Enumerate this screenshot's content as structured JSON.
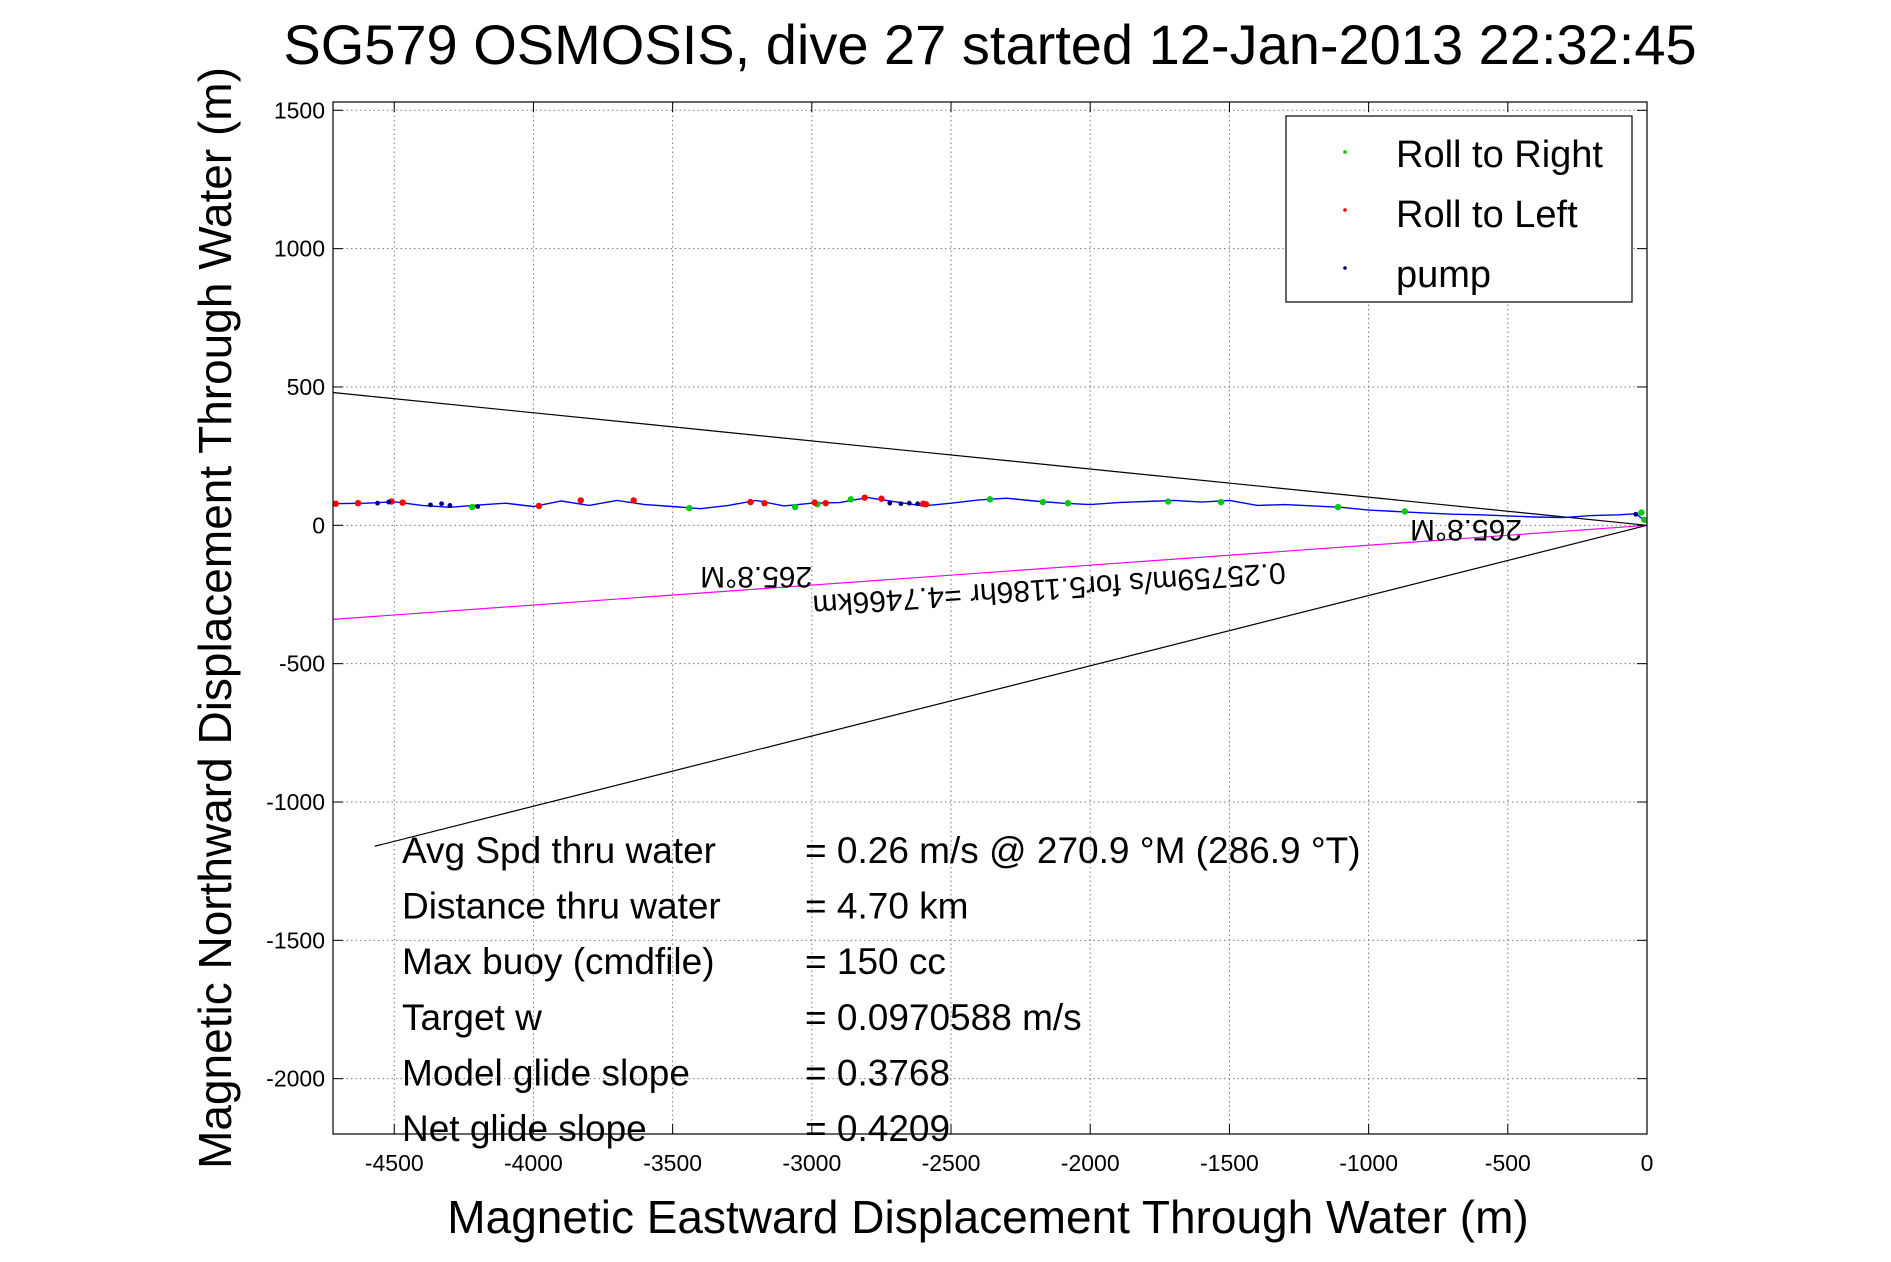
{
  "chart_data": {
    "type": "scatter",
    "title": "SG579 OSMOSIS, dive 27 started 12-Jan-2013 22:32:45",
    "xlabel": "Magnetic Eastward Displacement Through Water (m)",
    "ylabel": "Magnetic Northward Displacement Through Water (m)",
    "xlim": [
      -4720,
      0
    ],
    "ylim": [
      -2200,
      1530
    ],
    "xticks": [
      -4500,
      -4000,
      -3500,
      -3000,
      -2500,
      -2000,
      -1500,
      -1000,
      -500,
      0
    ],
    "yticks": [
      -2000,
      -1500,
      -1000,
      -500,
      0,
      500,
      1000,
      1500
    ],
    "grid": true,
    "legend_position": "top-right",
    "legend": [
      {
        "label": "Roll to Right",
        "color": "#00cc00"
      },
      {
        "label": "Roll to Left",
        "color": "#ff0000"
      },
      {
        "label": "pump",
        "color": "#000080"
      }
    ],
    "track": {
      "color": "#0000ff",
      "x": [
        -4720,
        -4600,
        -4500,
        -4400,
        -4300,
        -4200,
        -4100,
        -4000,
        -3900,
        -3800,
        -3700,
        -3600,
        -3500,
        -3400,
        -3300,
        -3200,
        -3100,
        -3000,
        -2900,
        -2800,
        -2700,
        -2600,
        -2500,
        -2400,
        -2300,
        -2200,
        -2100,
        -2000,
        -1900,
        -1800,
        -1700,
        -1600,
        -1500,
        -1400,
        -1300,
        -1200,
        -1100,
        -1000,
        -900,
        -800,
        -700,
        -600,
        -500,
        -400,
        -300,
        -200,
        -100,
        -40,
        0
      ],
      "y": [
        78,
        80,
        85,
        72,
        65,
        73,
        80,
        68,
        88,
        72,
        90,
        75,
        68,
        60,
        72,
        90,
        70,
        80,
        82,
        100,
        85,
        70,
        80,
        92,
        98,
        88,
        80,
        75,
        82,
        86,
        90,
        84,
        90,
        72,
        75,
        70,
        65,
        55,
        50,
        45,
        40,
        38,
        34,
        30,
        28,
        35,
        38,
        42,
        10
      ]
    },
    "roll_right": {
      "x": [
        -4220,
        -3440,
        -3060,
        -2980,
        -2860,
        -2360,
        -2170,
        -2080,
        -1720,
        -1530,
        -1110,
        -870,
        -20,
        -10
      ],
      "y": [
        66,
        62,
        66,
        76,
        94,
        94,
        84,
        80,
        86,
        84,
        66,
        50,
        46,
        20
      ]
    },
    "roll_left": {
      "x": [
        -4710,
        -4630,
        -4510,
        -4470,
        -3980,
        -3830,
        -3640,
        -3220,
        -3170,
        -2990,
        -2950,
        -2810,
        -2750,
        -2600,
        -2590
      ],
      "y": [
        78,
        80,
        86,
        82,
        70,
        90,
        90,
        84,
        80,
        82,
        80,
        100,
        96,
        78,
        76
      ]
    },
    "pump": {
      "x": [
        -4560,
        -4520,
        -4370,
        -4330,
        -4300,
        -4200,
        -2720,
        -2680,
        -2650,
        -2620,
        -40
      ],
      "y": [
        80,
        84,
        74,
        78,
        72,
        68,
        80,
        78,
        80,
        78,
        40
      ]
    },
    "lines": [
      {
        "color": "#000000",
        "x": [
          0,
          -4720
        ],
        "y": [
          0,
          480
        ]
      },
      {
        "color": "#000000",
        "x": [
          0,
          -4570
        ],
        "y": [
          0,
          -1160
        ]
      },
      {
        "color": "#ff00ff",
        "x": [
          0,
          -4720
        ],
        "y": [
          0,
          -340
        ]
      }
    ],
    "rotated_labels": [
      {
        "text": "265.8°M",
        "x": -3200,
        "y": -150
      },
      {
        "text": "265.8°M",
        "x": -650,
        "y": 20
      },
      {
        "text": "0.25759m/s for5.1186hr =4.7466km",
        "x": -2150,
        "y": -195
      }
    ],
    "stats": [
      {
        "label": "Avg Spd thru water",
        "value": "=  0.26 m/s @ 270.9 °M (286.9 °T)"
      },
      {
        "label": "Distance thru water",
        "value": "=  4.70 km"
      },
      {
        "label": "Max buoy (cmdfile)",
        "value": "= 150 cc"
      },
      {
        "label": "Target w",
        "value": "= 0.0970588 m/s"
      },
      {
        "label": "Model glide slope",
        "value": "= 0.3768"
      },
      {
        "label": "Net glide slope",
        "value": "= 0.4209"
      }
    ]
  }
}
